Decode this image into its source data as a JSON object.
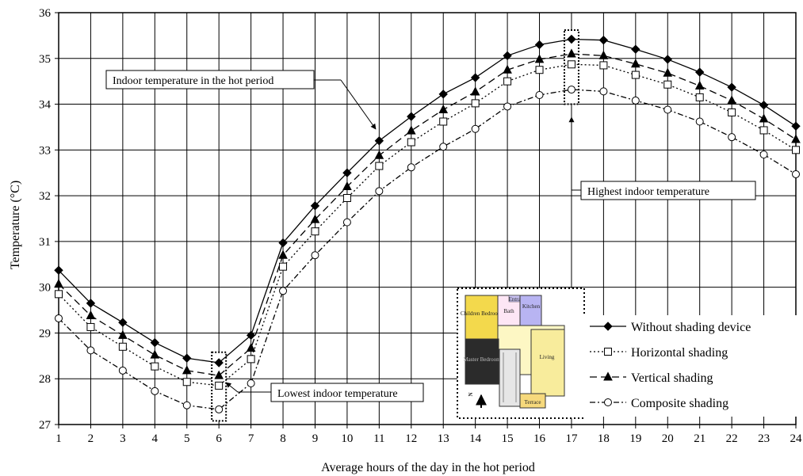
{
  "chart_data": {
    "type": "line",
    "title": "",
    "xlabel": "Average hours of the day in the hot period",
    "ylabel": "Temperature (°C)",
    "x": [
      1,
      2,
      3,
      4,
      5,
      6,
      7,
      8,
      9,
      10,
      11,
      12,
      13,
      14,
      15,
      16,
      17,
      18,
      19,
      20,
      21,
      22,
      23,
      24
    ],
    "xlim": [
      1,
      24
    ],
    "ylim": [
      27,
      36
    ],
    "yticks": [
      "27",
      "28",
      "29",
      "30",
      "31",
      "32",
      "33",
      "34",
      "35",
      "36"
    ],
    "xticks": [
      "1",
      "2",
      "3",
      "4",
      "5",
      "6",
      "7",
      "8",
      "9",
      "10",
      "11",
      "12",
      "13",
      "14",
      "15",
      "16",
      "17",
      "18",
      "19",
      "20",
      "21",
      "22",
      "23",
      "24"
    ],
    "grid": true,
    "legend_position": "bottom-right",
    "series": [
      {
        "name": "Without shading device",
        "marker": "filled-diamond",
        "line": "solid",
        "values": [
          30.37,
          29.65,
          29.23,
          28.79,
          28.45,
          28.35,
          28.95,
          30.97,
          31.78,
          32.5,
          33.2,
          33.73,
          34.22,
          34.58,
          35.06,
          35.3,
          35.42,
          35.4,
          35.2,
          34.98,
          34.7,
          34.37,
          33.98,
          33.52
        ]
      },
      {
        "name": "Horizontal shading",
        "marker": "open-square",
        "line": "dotted",
        "values": [
          29.85,
          29.13,
          28.7,
          28.27,
          27.93,
          27.85,
          28.43,
          30.45,
          31.22,
          31.95,
          32.65,
          33.17,
          33.62,
          34.02,
          34.5,
          34.75,
          34.87,
          34.85,
          34.64,
          34.43,
          34.15,
          33.82,
          33.43,
          33.0
        ]
      },
      {
        "name": "Vertical shading",
        "marker": "filled-triangle",
        "line": "long-dash",
        "values": [
          30.07,
          29.38,
          28.95,
          28.52,
          28.18,
          28.07,
          28.67,
          30.7,
          31.48,
          32.2,
          32.88,
          33.42,
          33.88,
          34.27,
          34.75,
          34.98,
          35.1,
          35.06,
          34.88,
          34.68,
          34.4,
          34.08,
          33.68,
          33.23
        ]
      },
      {
        "name": "Composite shading",
        "marker": "open-circle",
        "line": "dash-dot",
        "values": [
          29.32,
          28.62,
          28.18,
          27.73,
          27.42,
          27.33,
          27.9,
          29.92,
          30.7,
          31.42,
          32.1,
          32.62,
          33.07,
          33.46,
          33.95,
          34.2,
          34.32,
          34.28,
          34.08,
          33.88,
          33.62,
          33.28,
          32.9,
          32.47
        ]
      }
    ],
    "annotations": [
      {
        "id": "indoor",
        "text": "Indoor temperature in the hot period",
        "target_x": 11,
        "target_y": 33.2
      },
      {
        "id": "highest",
        "text": "Highest indoor temperature",
        "target_x": 17,
        "target_y": 33.85
      },
      {
        "id": "lowest",
        "text": "Lowest indoor temperature",
        "target_x": 6,
        "target_y": 27.75
      }
    ],
    "highlight_boxes": [
      {
        "x": 6,
        "y_from": 27.08,
        "y_to": 28.58
      },
      {
        "x": 17,
        "y_from": 34.0,
        "y_to": 35.62
      }
    ]
  },
  "floorplan": {
    "labels": {
      "children_bedroom": "Children Bedroom",
      "bath": "Bath",
      "entrance": "Entrance",
      "kitchen": "Kitchen",
      "master_bedroom": "Master Bedroom",
      "living": "Living",
      "terrace": "Terrace",
      "north": "N"
    }
  }
}
